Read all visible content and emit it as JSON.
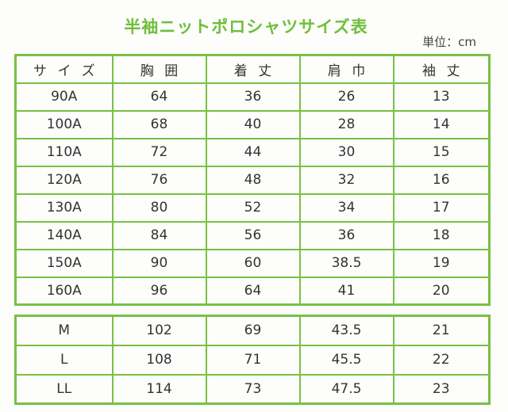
{
  "header": {
    "title": "半袖ニットポロシャツサイズ表",
    "unit": "単位：cm"
  },
  "table": {
    "columns": [
      "サイズ",
      "胸囲",
      "着丈",
      "肩巾",
      "袖丈"
    ],
    "rows": [
      [
        "90A",
        64,
        36,
        26,
        13
      ],
      [
        "100A",
        68,
        40,
        28,
        14
      ],
      [
        "110A",
        72,
        44,
        30,
        15
      ],
      [
        "120A",
        76,
        48,
        32,
        16
      ],
      [
        "130A",
        80,
        52,
        34,
        17
      ],
      [
        "140A",
        84,
        56,
        36,
        18
      ],
      [
        "150A",
        90,
        60,
        38.5,
        19
      ],
      [
        "160A",
        96,
        64,
        41,
        20
      ]
    ]
  },
  "table2": {
    "rows": [
      [
        "M",
        102,
        69,
        43.5,
        21
      ],
      [
        "L",
        108,
        71,
        45.5,
        22
      ],
      [
        "LL",
        114,
        73,
        47.5,
        23
      ]
    ]
  }
}
